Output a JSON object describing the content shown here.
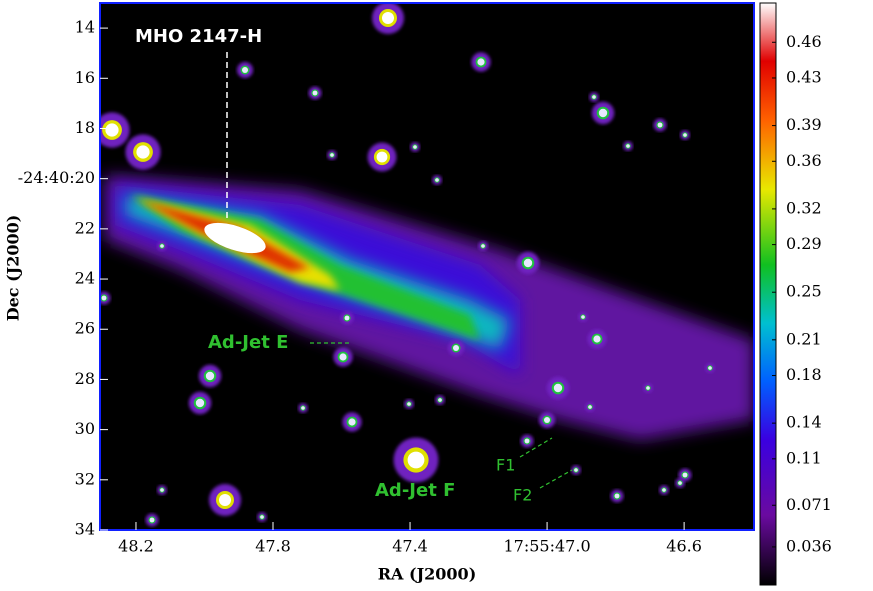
{
  "chart_data": {
    "type": "image",
    "xlabel": "RA (J2000)",
    "ylabel": "Dec (J2000)",
    "xlim": [
      48.305,
      46.396
    ],
    "xticks": [
      48.2,
      47.8,
      47.4,
      {
        "value": 47.0,
        "label": "17:55:47.0"
      },
      46.6
    ],
    "ylim": [
      13,
      34
    ],
    "yticks": [
      14,
      16,
      18,
      {
        "value": 20,
        "label": "-24:40:20"
      },
      22,
      24,
      26,
      28,
      30,
      32,
      34
    ],
    "clim": [
      0.004,
      0.493
    ],
    "cticks": [
      0.036,
      0.071,
      0.11,
      0.14,
      0.18,
      0.21,
      0.25,
      0.29,
      0.32,
      0.36,
      0.39,
      0.43,
      0.46
    ],
    "annotations": [
      "MHO 2147-H",
      "Ad-Jet E",
      "Ad-Jet F",
      "F1",
      "F2"
    ]
  }
}
